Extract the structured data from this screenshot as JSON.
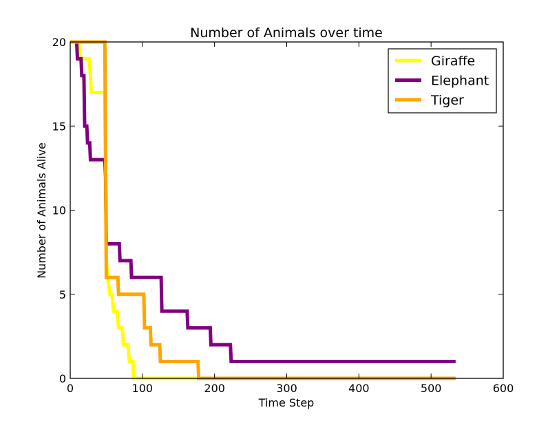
{
  "chart_data": {
    "type": "line",
    "title": "Number of Animals over time",
    "xlabel": "Time Step",
    "ylabel": "Number of Animals Alive",
    "xlim": [
      0,
      600
    ],
    "ylim": [
      0,
      20
    ],
    "xticks": [
      "0",
      "100",
      "200",
      "300",
      "400",
      "500",
      "600"
    ],
    "yticks": [
      "0",
      "5",
      "10",
      "15",
      "20"
    ],
    "legend_position": "top-right",
    "step": true,
    "series": [
      {
        "name": "Giraffe",
        "color": "#ffff00",
        "points": [
          [
            0,
            20
          ],
          [
            12,
            20
          ],
          [
            14,
            19
          ],
          [
            26,
            19
          ],
          [
            28,
            18
          ],
          [
            29,
            17
          ],
          [
            48,
            17
          ],
          [
            50,
            7
          ],
          [
            52,
            6
          ],
          [
            55,
            5
          ],
          [
            58,
            5
          ],
          [
            60,
            4
          ],
          [
            65,
            4
          ],
          [
            67,
            3
          ],
          [
            72,
            3
          ],
          [
            74,
            2
          ],
          [
            80,
            2
          ],
          [
            82,
            1
          ],
          [
            87,
            1
          ],
          [
            88,
            0
          ],
          [
            534,
            0
          ]
        ]
      },
      {
        "name": "Elephant",
        "color": "#800080",
        "points": [
          [
            0,
            20
          ],
          [
            9,
            20
          ],
          [
            10,
            19
          ],
          [
            15,
            19
          ],
          [
            16,
            18
          ],
          [
            19,
            18
          ],
          [
            20,
            15
          ],
          [
            23,
            15
          ],
          [
            24,
            14
          ],
          [
            27,
            14
          ],
          [
            28,
            13
          ],
          [
            48,
            13
          ],
          [
            49,
            12
          ],
          [
            50,
            8
          ],
          [
            68,
            8
          ],
          [
            69,
            7
          ],
          [
            84,
            7
          ],
          [
            85,
            6
          ],
          [
            126,
            6
          ],
          [
            127,
            4
          ],
          [
            162,
            4
          ],
          [
            163,
            3
          ],
          [
            194,
            3
          ],
          [
            195,
            2
          ],
          [
            222,
            2
          ],
          [
            223,
            1
          ],
          [
            534,
            1
          ]
        ]
      },
      {
        "name": "Tiger",
        "color": "#ffa500",
        "points": [
          [
            0,
            20
          ],
          [
            48,
            20
          ],
          [
            49,
            13
          ],
          [
            50,
            6
          ],
          [
            66,
            6
          ],
          [
            67,
            5
          ],
          [
            102,
            5
          ],
          [
            103,
            3
          ],
          [
            111,
            3
          ],
          [
            112,
            2
          ],
          [
            124,
            2
          ],
          [
            125,
            1
          ],
          [
            177,
            1
          ],
          [
            178,
            0
          ],
          [
            534,
            0
          ]
        ]
      }
    ]
  }
}
